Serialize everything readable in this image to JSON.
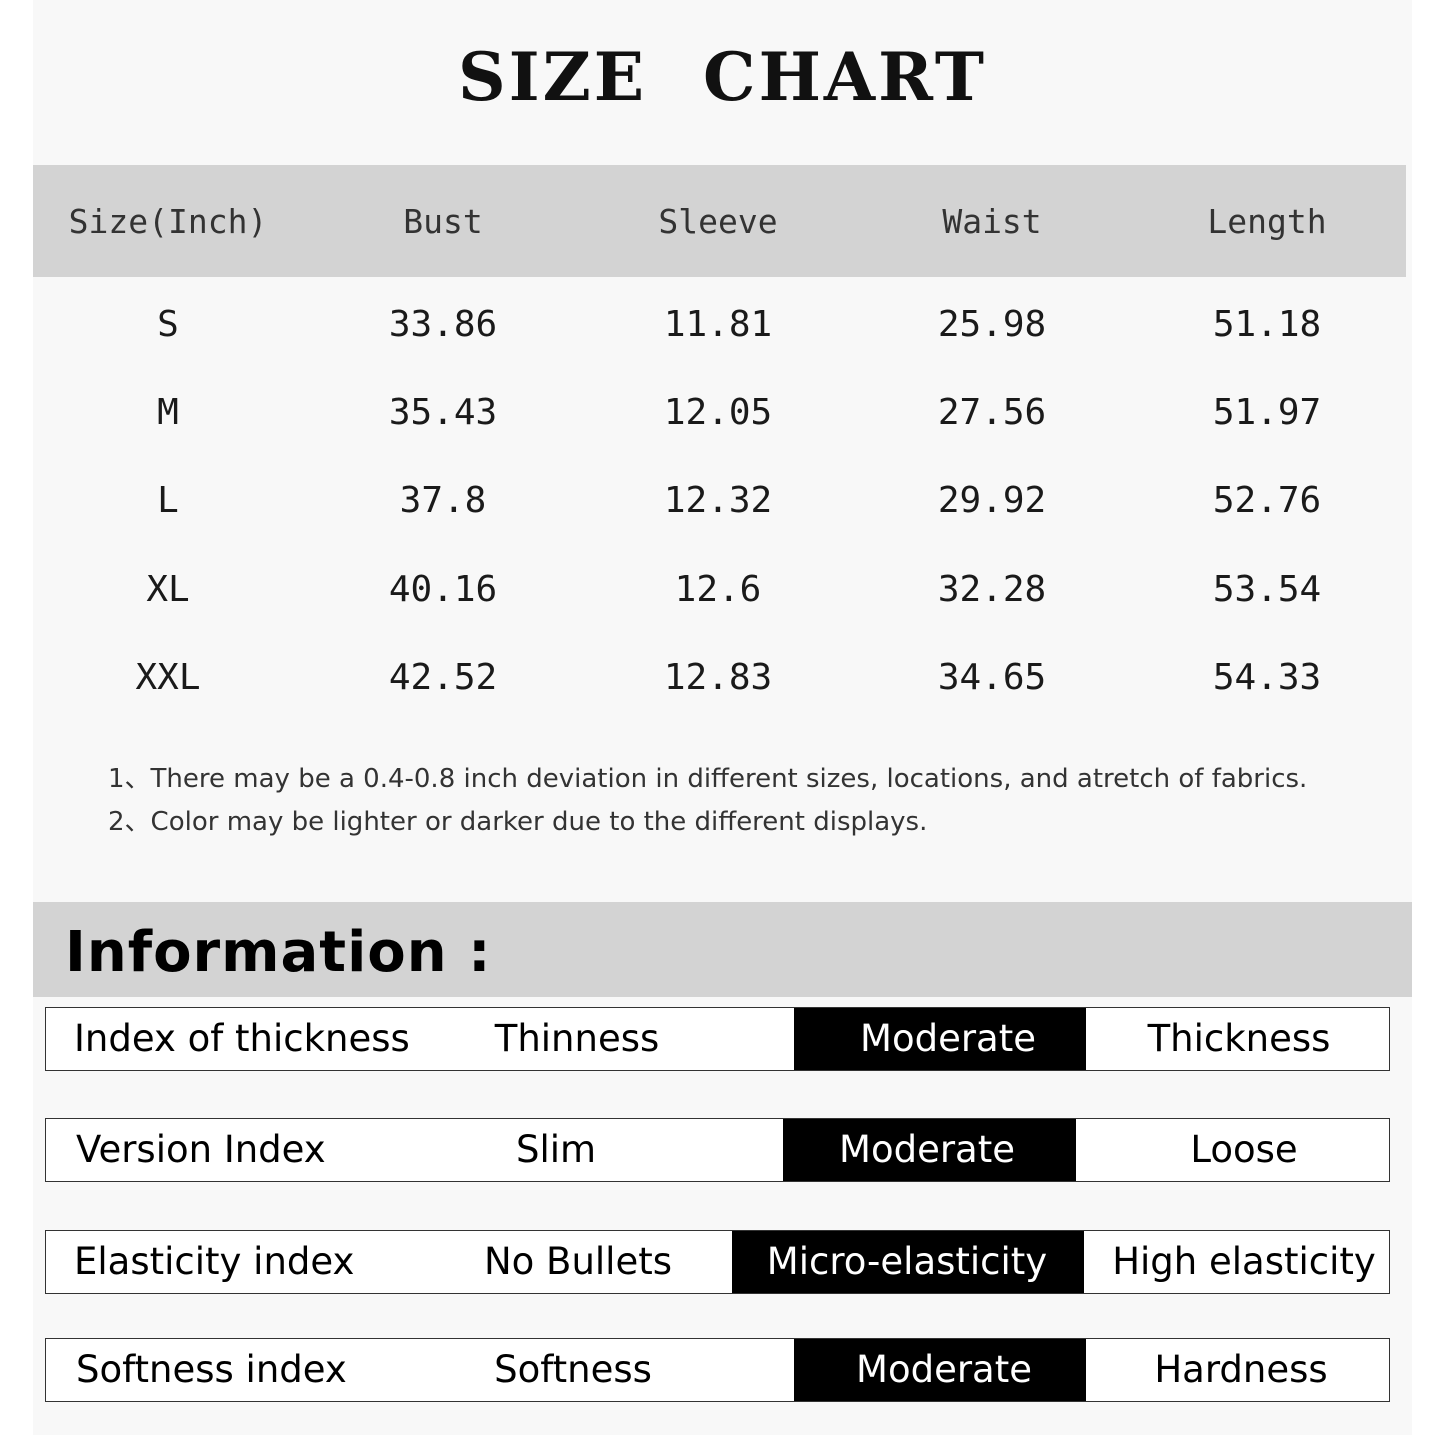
{
  "title": "SIZE CHART",
  "table": {
    "headers": [
      "Size(Inch)",
      "Bust",
      "Sleeve",
      "Waist",
      "Length"
    ],
    "rows": [
      [
        "S",
        "33.86",
        "11.81",
        "25.98",
        "51.18"
      ],
      [
        "M",
        "35.43",
        "12.05",
        "27.56",
        "51.97"
      ],
      [
        "L",
        "37.8",
        "12.32",
        "29.92",
        "52.76"
      ],
      [
        "XL",
        "40.16",
        "12.6",
        "32.28",
        "53.54"
      ],
      [
        "XXL",
        "42.52",
        "12.83",
        "34.65",
        "54.33"
      ]
    ]
  },
  "notes": [
    "1、There may be a 0.4-0.8 inch deviation in different sizes, locations, and atretch of fabrics.",
    "2、Color may be lighter or darker due to the different displays."
  ],
  "information": {
    "title": "Information :",
    "rows": [
      {
        "label": "Index of thickness",
        "options": [
          "Thinness",
          "Moderate",
          "Thickness"
        ],
        "selected": 1
      },
      {
        "label": "Version Index",
        "options": [
          "Slim",
          "Moderate",
          "Loose"
        ],
        "selected": 1
      },
      {
        "label": "Elasticity index",
        "options": [
          "No Bullets",
          "Micro-elasticity",
          "High elasticity"
        ],
        "selected": 1
      },
      {
        "label": "Softness index",
        "options": [
          "Softness",
          "Moderate",
          "Hardness"
        ],
        "selected": 1
      }
    ]
  },
  "colors": {
    "header_bg": "#d3d3d3",
    "selected_bg": "#000000",
    "panel_bg": "#f8f8f8"
  }
}
